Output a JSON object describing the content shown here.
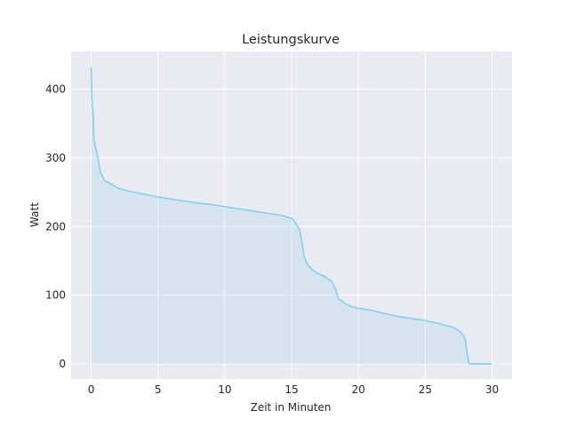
{
  "chart_data": {
    "type": "area",
    "title": "Leistungskurve",
    "xlabel": "Zeit in Minuten",
    "ylabel": "Watt",
    "xlim": [
      -1.5,
      31.5
    ],
    "ylim": [
      -22,
      455
    ],
    "xticks": [
      0,
      5,
      10,
      15,
      20,
      25,
      30
    ],
    "yticks": [
      0,
      100,
      200,
      300,
      400
    ],
    "grid": true,
    "line_color": "#87ceeb",
    "fill_color": "#87ceeb",
    "fill_opacity": 0.2,
    "series": [
      {
        "x": [
          0,
          0.05,
          0.1,
          0.15,
          0.2,
          0.3,
          0.4,
          0.5,
          0.6,
          0.7,
          0.8,
          1.0,
          1.5,
          2.0,
          2.5,
          3,
          4,
          5,
          6,
          7,
          8,
          9,
          10,
          11,
          12,
          13,
          14,
          14.5,
          15,
          15.3,
          15.6,
          15.8,
          15.9,
          16.0,
          16.1,
          16.3,
          16.5,
          17,
          17.5,
          18,
          18.3,
          18.5,
          18.8,
          19,
          19.5,
          20,
          21,
          22,
          23,
          24,
          25,
          26,
          26.5,
          27,
          27.3,
          27.6,
          27.8,
          27.9,
          28.0,
          28.1,
          28.2,
          28.3,
          29,
          30
        ],
        "y": [
          432,
          390,
          370,
          365,
          330,
          318,
          310,
          300,
          290,
          278,
          275,
          267,
          262,
          256,
          253,
          251,
          247,
          243,
          240,
          237,
          234,
          232,
          229,
          226,
          223,
          220,
          217,
          215,
          212,
          205,
          195,
          175,
          160,
          153,
          148,
          142,
          138,
          131,
          127,
          120,
          108,
          95,
          91,
          88,
          83,
          81,
          78,
          73,
          69,
          66,
          63,
          59,
          56,
          54,
          51,
          47,
          43,
          40,
          35,
          20,
          8,
          0,
          0,
          0
        ]
      }
    ]
  }
}
